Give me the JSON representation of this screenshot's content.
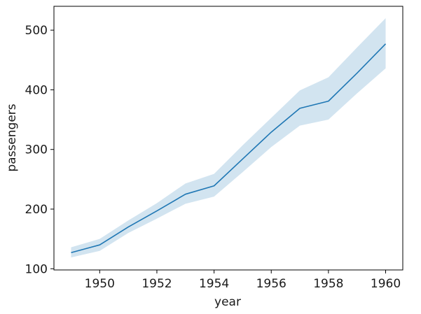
{
  "chart_data": {
    "type": "line",
    "title": "",
    "xlabel": "year",
    "ylabel": "passengers",
    "xlim": [
      1948.4,
      1960.6
    ],
    "ylim": [
      98,
      540
    ],
    "xticks": [
      1950,
      1952,
      1954,
      1956,
      1958,
      1960
    ],
    "xtick_labels": [
      "1950",
      "1952",
      "1954",
      "1956",
      "1958",
      "1960"
    ],
    "yticks": [
      100,
      200,
      300,
      400,
      500
    ],
    "ytick_labels": [
      "100",
      "200",
      "300",
      "400",
      "500"
    ],
    "grid": false,
    "legend": "none",
    "series": [
      {
        "x": [
          1949,
          1950,
          1951,
          1952,
          1953,
          1954,
          1955,
          1956,
          1957,
          1958,
          1959,
          1960
        ],
        "values": [
          127,
          140,
          170,
          197,
          225,
          239,
          284,
          329,
          369,
          381,
          428,
          477
        ],
        "ci_lower": [
          119,
          130,
          160,
          184,
          209,
          221,
          262,
          304,
          340,
          350,
          394,
          436
        ],
        "ci_upper": [
          136,
          150,
          181,
          210,
          243,
          259,
          307,
          353,
          399,
          421,
          471,
          520
        ],
        "color": "#1f77b4",
        "band_color": "#1f77b4"
      }
    ]
  }
}
